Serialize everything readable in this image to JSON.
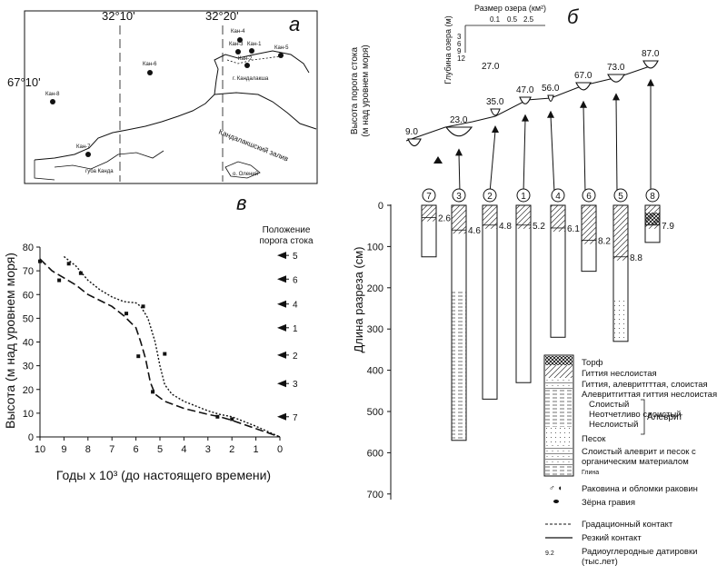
{
  "panel_a": {
    "label": "а",
    "lon1": "32°10'",
    "lon2": "32°20'",
    "lat": "67°10'",
    "sites": {
      "kan1": "Кан-1",
      "kan2": "Кан-2",
      "kan3": "Кан-3",
      "kan4": "Кан-4",
      "kan5": "Кан-5",
      "kan6": "Кан-6",
      "kan7": "Кан-7",
      "kan8": "Кан-8"
    },
    "town": "г. Кандалакша",
    "gulf": "Кандалакшский залив",
    "bay": "губа Канда",
    "island": "о. Олений"
  },
  "panel_b": {
    "label": "б",
    "ylabel1": "Высота порога стока",
    "ylabel2": "(м над уровнем моря)",
    "size_label": "Размер озера (км²)",
    "depth_label": "Глубина озера (м)",
    "size_ticks": [
      "0.1",
      "0.5",
      "2.5"
    ],
    "depth_ticks": [
      "3",
      "6",
      "9",
      "12"
    ],
    "stray_value": "27.0",
    "lakes": [
      {
        "label": "9.0"
      },
      {
        "label": "23.0"
      },
      {
        "label": "35.0"
      },
      {
        "label": "47.0"
      },
      {
        "label": "56.0"
      },
      {
        "label": "67.0"
      },
      {
        "label": "73.0"
      },
      {
        "label": "87.0"
      }
    ]
  },
  "chart_data": {
    "type": "line",
    "panel_label": "в",
    "ylabel": "Высота (м над уровнем моря)",
    "xlabel": "Годы x 10³ (до настоящего времени)",
    "threshold_title1": "Положение",
    "threshold_title2": "порога стока",
    "x_ticks": [
      "10",
      "9",
      "8",
      "7",
      "6",
      "5",
      "4",
      "3",
      "2",
      "1",
      "0"
    ],
    "y_ticks": [
      "0",
      "10",
      "20",
      "30",
      "40",
      "50",
      "60",
      "70",
      "80"
    ],
    "xlim": [
      10,
      0
    ],
    "ylim": [
      0,
      80
    ],
    "series": [
      {
        "name": "dashed",
        "x": [
          10,
          9.5,
          9,
          8.5,
          8,
          7,
          6.5,
          6,
          5.8,
          5.6,
          5.5,
          5.4,
          5.2,
          4.8,
          4,
          3,
          2.5,
          2,
          1,
          0
        ],
        "y": [
          75,
          70,
          67,
          64,
          60,
          55,
          51,
          46,
          40,
          33,
          28,
          23,
          18,
          15,
          12,
          9.5,
          8.5,
          7,
          3.5,
          0
        ]
      },
      {
        "name": "dotted",
        "x": [
          9,
          8.5,
          8,
          7.5,
          7,
          6.5,
          6,
          5.8,
          5.5,
          5.2,
          5,
          4.8,
          4.5,
          4,
          3,
          2.5,
          2,
          1,
          0
        ],
        "y": [
          76,
          72,
          66,
          62,
          59,
          57,
          56.5,
          55,
          50,
          40,
          30,
          22,
          18,
          15,
          11,
          9.5,
          8.5,
          4.5,
          0
        ]
      }
    ],
    "data_points": [
      {
        "x": 10,
        "y": 74
      },
      {
        "x": 9.2,
        "y": 66
      },
      {
        "x": 8.8,
        "y": 73
      },
      {
        "x": 8.3,
        "y": 69
      },
      {
        "x": 6.4,
        "y": 52
      },
      {
        "x": 5.9,
        "y": 34
      },
      {
        "x": 5.7,
        "y": 55
      },
      {
        "x": 5.3,
        "y": 19
      },
      {
        "x": 4.8,
        "y": 35
      },
      {
        "x": 2.6,
        "y": 8.5
      },
      {
        "x": 2.0,
        "y": 7.5
      }
    ],
    "thresholds": [
      {
        "label": "5",
        "y": 76.5
      },
      {
        "label": "6",
        "y": 66.5
      },
      {
        "label": "4",
        "y": 56
      },
      {
        "label": "1",
        "y": 46
      },
      {
        "label": "2",
        "y": 34.5
      },
      {
        "label": "3",
        "y": 22.5
      },
      {
        "label": "7",
        "y": 8.5
      }
    ]
  },
  "cores": {
    "ylabel": "Длина разреза (см)",
    "depth_ticks": [
      "0",
      "100",
      "200",
      "300",
      "400",
      "500",
      "600",
      "700"
    ],
    "max_depth": 700,
    "items": [
      {
        "id": "7",
        "depth": 125,
        "dates": [
          {
            "label": "2.6",
            "d": 30
          }
        ]
      },
      {
        "id": "3",
        "depth": 570,
        "dates": [
          {
            "label": "4.6",
            "d": 60
          }
        ]
      },
      {
        "id": "2",
        "depth": 470,
        "dates": [
          {
            "label": "4.8",
            "d": 48
          }
        ]
      },
      {
        "id": "1",
        "depth": 430,
        "dates": [
          {
            "label": "5.2",
            "d": 48
          }
        ]
      },
      {
        "id": "4",
        "depth": 320,
        "dates": [
          {
            "label": "6.1",
            "d": 55
          }
        ]
      },
      {
        "id": "6",
        "depth": 160,
        "dates": [
          {
            "label": "8.2",
            "d": 85
          }
        ]
      },
      {
        "id": "5",
        "depth": 330,
        "dates": [
          {
            "label": "8.8",
            "d": 125
          }
        ]
      },
      {
        "id": "8",
        "depth": 90,
        "dates": [
          {
            "label": "7.9",
            "d": 48
          }
        ]
      }
    ]
  },
  "legend": {
    "items": [
      "Торф",
      "Гиттия неслоистая",
      "Гиттия, алевритгттая, слоистая",
      "Алевритгиттая гиттия неслоистая",
      "Слоистый",
      "Неотчетливо слоистый",
      "Неслоистый",
      "Песок",
      "Слоистый алеврит и песок с",
      "органическим материалом",
      "Глина",
      "Раковина и обломки раковин",
      "Зёрна гравия",
      "Градационный контакт",
      "Резкий контакт",
      "Радиоуглеродные датировки",
      "(тыс.лет)"
    ],
    "silt_group": "Алеврит",
    "shell_symbol": "♂ ◖",
    "date_symbol": "9.2"
  }
}
